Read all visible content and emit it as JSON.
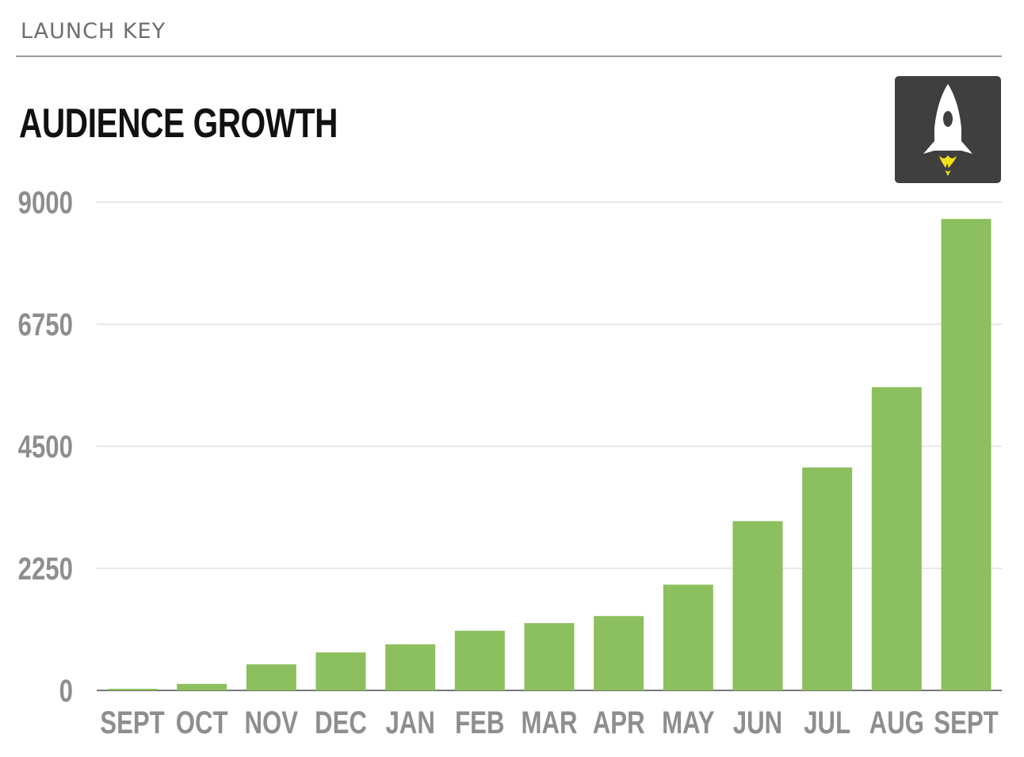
{
  "header": {
    "brand": "LAUNCH KEY"
  },
  "logo": {
    "icon": "rocket-icon",
    "colors": {
      "background": "#3f3f3f",
      "rocket": "#ffffff",
      "flame": "#f2e21b"
    }
  },
  "chart_data": {
    "type": "bar",
    "title": "AUDIENCE GROWTH",
    "xlabel": "",
    "ylabel": "",
    "categories": [
      "SEPT",
      "OCT",
      "NOV",
      "DEC",
      "JAN",
      "FEB",
      "MAR",
      "APR",
      "MAY",
      "JUN",
      "JUL",
      "AUG",
      "SEPT"
    ],
    "values": [
      30,
      120,
      480,
      700,
      850,
      1100,
      1240,
      1370,
      1950,
      3120,
      4110,
      5590,
      8690
    ],
    "ylim": [
      0,
      9000
    ],
    "yticks": [
      "0",
      "2250",
      "4500",
      "6750",
      "9000"
    ],
    "ytick_values": [
      0,
      2250,
      4500,
      6750,
      9000
    ],
    "grid": true,
    "legend": "none",
    "colors": {
      "bar": "#8cbf5d",
      "grid": "#e0e0e0",
      "axis": "#777777",
      "tick_text": "#8e8e8e"
    }
  }
}
